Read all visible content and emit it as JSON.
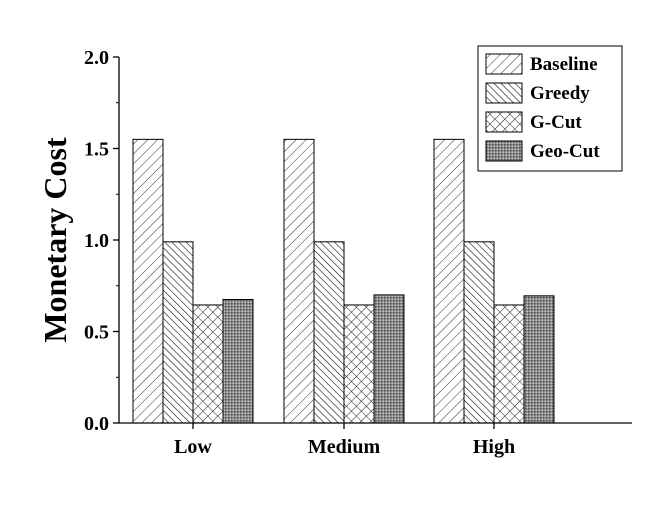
{
  "chart_data": {
    "type": "bar",
    "title": "",
    "xlabel": "",
    "ylabel": "Monetary Cost",
    "ylim": [
      0,
      2.0
    ],
    "yticks": [
      "0.0",
      "0.5",
      "1.0",
      "1.5",
      "2.0"
    ],
    "grid": false,
    "legend_position": "top-right",
    "categories": [
      "Low",
      "Medium",
      "High"
    ],
    "series": [
      {
        "name": "Baseline",
        "pattern": "diagonal-forward",
        "values": [
          1.55,
          1.55,
          1.55
        ]
      },
      {
        "name": "Greedy",
        "pattern": "diagonal-backward",
        "values": [
          0.99,
          0.99,
          0.99
        ]
      },
      {
        "name": "G-Cut",
        "pattern": "crosshatch",
        "values": [
          0.645,
          0.645,
          0.645
        ]
      },
      {
        "name": "Geo-Cut",
        "pattern": "dense-dots",
        "values": [
          0.675,
          0.7,
          0.695
        ]
      }
    ]
  }
}
